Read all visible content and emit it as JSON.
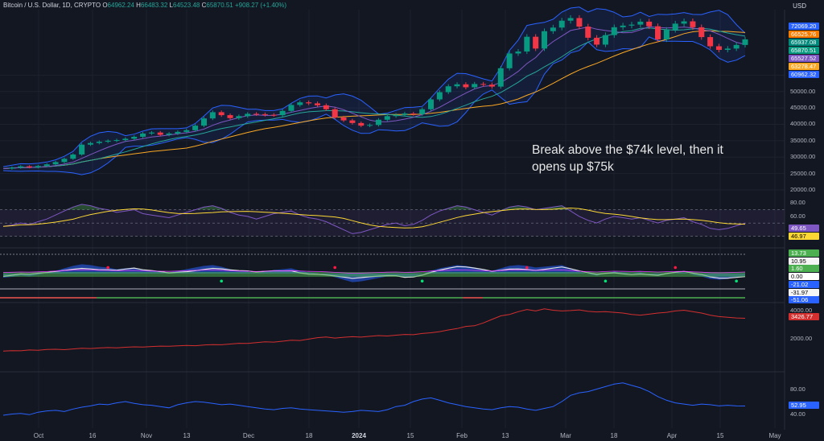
{
  "header": {
    "symbol": "Bitcoin / U.S. Dollar, 1D, CRYPTO",
    "open_lbl": "O",
    "open": "64962.24",
    "high_lbl": "H",
    "high": "66483.32",
    "low_lbl": "L",
    "low": "64523.48",
    "close_lbl": "C",
    "close": "65870.51",
    "change": "+908.27 (+1.40%)"
  },
  "currency": "USD",
  "annotation": "Break above the $74k level, then it\nopens up $75k",
  "price_tags": [
    {
      "text": "72069.20",
      "color": "#2962ff"
    },
    {
      "text": "66525.76",
      "color": "#f57c00"
    },
    {
      "text": "65937.08",
      "color": "#00897b"
    },
    {
      "text": "65870.51",
      "color": "#089981"
    },
    {
      "text": "65527.52",
      "color": "#7e57c2"
    },
    {
      "text": "63278.47",
      "color": "#f9a825"
    },
    {
      "text": "60962.32",
      "color": "#2962ff"
    }
  ],
  "price_ticks": [
    "55000.00",
    "50000.00",
    "45000.00",
    "40000.00",
    "35000.00",
    "30000.00",
    "25000.00",
    "20000.00"
  ],
  "rsi": {
    "ticks": [
      "80.00",
      "60.00",
      "40.00"
    ],
    "tags": [
      {
        "text": "49.65",
        "color": "#7e57c2"
      },
      {
        "text": "46.97",
        "color": "#fdd835"
      }
    ]
  },
  "oscillator": {
    "tags": [
      {
        "text": "13.73",
        "color": "#4caf50"
      },
      {
        "text": "10.95",
        "color": "#f5f5f5"
      },
      {
        "text": "1.60",
        "color": "#4caf50"
      },
      {
        "text": "0.00",
        "color": "#ffffff"
      },
      {
        "text": "-21.02",
        "color": "#2962ff"
      },
      {
        "text": "-31.97",
        "color": "#f5f5f5"
      },
      {
        "text": "-51.06",
        "color": "#2962ff"
      }
    ]
  },
  "panel4": {
    "ticks": [
      "4000.00",
      "2000.00"
    ],
    "tag": {
      "text": "3426.77",
      "color": "#d32f2f"
    }
  },
  "panel5": {
    "ticks": [
      "80.00",
      "40.00"
    ],
    "tag": {
      "text": "52.95",
      "color": "#2962ff"
    }
  },
  "x_axis": [
    "Oct",
    "16",
    "Nov",
    "13",
    "Dec",
    "18",
    "2024",
    "15",
    "Feb",
    "13",
    "Mar",
    "18",
    "Apr",
    "15",
    "May"
  ],
  "colors": {
    "up": "#089981",
    "down": "#f23645",
    "bb": "#2962ff",
    "ma_slow": "#f9a825",
    "ma_mid": "#7e57c2",
    "ma_fast": "#f57c00",
    "rsi": "#7e57c2",
    "rsi_ma": "#fdd835",
    "red": "#d32f2f",
    "blue": "#2962ff"
  },
  "chart_data": {
    "type": "candlestick",
    "price_series": [
      26500,
      26800,
      27200,
      26900,
      27300,
      27800,
      28500,
      29500,
      30800,
      33800,
      34300,
      34700,
      35000,
      35200,
      35600,
      36200,
      37200,
      37500,
      36800,
      37200,
      37700,
      38200,
      39600,
      41800,
      43700,
      42800,
      41900,
      42500,
      43200,
      43100,
      42900,
      42800,
      44100,
      45900,
      46700,
      46400,
      45800,
      44600,
      42100,
      41200,
      40400,
      39600,
      39800,
      41400,
      42500,
      42900,
      43300,
      43100,
      44600,
      47600,
      49800,
      51600,
      52200,
      51300,
      52300,
      52100,
      51500,
      57100,
      61600,
      62200,
      66700,
      63100,
      68400,
      69500,
      71600,
      72400,
      69800,
      66400,
      64300,
      67200,
      69600,
      70100,
      70400,
      71300,
      69900,
      65900,
      68800,
      70700,
      71400,
      69600,
      66600,
      63800,
      62700,
      63100,
      64200,
      65900
    ],
    "rsi_series": [
      45,
      47,
      50,
      48,
      52,
      56,
      62,
      68,
      74,
      78,
      76,
      72,
      70,
      66,
      68,
      70,
      64,
      62,
      60,
      58,
      62,
      66,
      70,
      74,
      76,
      72,
      66,
      62,
      60,
      56,
      60,
      64,
      66,
      68,
      62,
      58,
      56,
      52,
      46,
      40,
      34,
      36,
      40,
      44,
      48,
      50,
      46,
      48,
      54,
      62,
      68,
      72,
      76,
      74,
      70,
      66,
      62,
      68,
      74,
      76,
      74,
      70,
      72,
      74,
      76,
      68,
      60,
      54,
      50,
      56,
      60,
      58,
      56,
      58,
      54,
      50,
      54,
      56,
      58,
      52,
      48,
      42,
      40,
      42,
      46,
      49.65
    ],
    "panel4_series": [
      1100,
      1130,
      1120,
      1180,
      1160,
      1210,
      1230,
      1200,
      1250,
      1300,
      1280,
      1320,
      1350,
      1330,
      1370,
      1400,
      1390,
      1420,
      1450,
      1440,
      1470,
      1500,
      1480,
      1530,
      1560,
      1550,
      1600,
      1650,
      1640,
      1700,
      1760,
      1740,
      1800,
      1870,
      1850,
      1950,
      2050,
      2100,
      2020,
      2080,
      2120,
      2090,
      2150,
      2200,
      2170,
      2230,
      2280,
      2260,
      2350,
      2400,
      2480,
      2600,
      2700,
      2850,
      2900,
      3100,
      3350,
      3600,
      3700,
      3900,
      4050,
      3950,
      4100,
      4000,
      3950,
      3980,
      4020,
      3920,
      3880,
      3900,
      3850,
      3800,
      3700,
      3650,
      3720,
      3800,
      3850,
      3950,
      4000,
      3900,
      3800,
      3650,
      3550,
      3500,
      3450,
      3426.77
    ],
    "panel5_series": [
      38,
      40,
      41,
      39,
      43,
      45,
      46,
      44,
      48,
      51,
      53,
      56,
      55,
      58,
      60,
      57,
      55,
      54,
      52,
      50,
      55,
      58,
      60,
      59,
      57,
      55,
      56,
      54,
      52,
      50,
      48,
      47,
      49,
      50,
      48,
      47,
      46,
      45,
      44,
      43,
      44,
      46,
      45,
      44,
      47,
      52,
      54,
      60,
      64,
      66,
      62,
      58,
      55,
      52,
      50,
      48,
      47,
      50,
      52,
      51,
      48,
      46,
      49,
      52,
      60,
      70,
      74,
      76,
      80,
      84,
      88,
      90,
      86,
      82,
      76,
      68,
      62,
      58,
      56,
      54,
      56,
      55,
      53,
      54,
      53,
      52.95
    ]
  }
}
